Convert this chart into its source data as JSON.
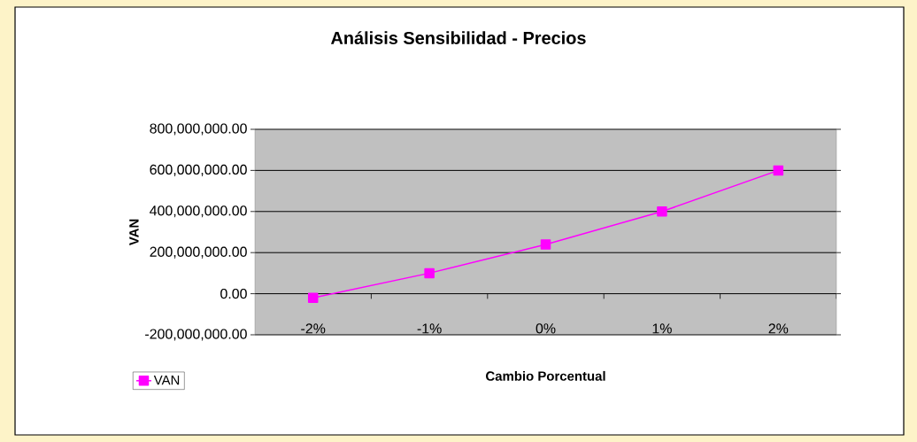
{
  "chart_data": {
    "type": "line",
    "title": "Análisis Sensibilidad - Precios",
    "xlabel": "Cambio Porcentual",
    "ylabel": "VAN",
    "categories": [
      "-2%",
      "-1%",
      "0%",
      "1%",
      "2%"
    ],
    "series": [
      {
        "name": "VAN",
        "color": "#ff00ff",
        "values": [
          -20000000,
          100000000,
          240000000,
          400000000,
          600000000
        ]
      }
    ],
    "ylim": [
      -200000000,
      800000000
    ],
    "yticks": [
      {
        "value": -200000000,
        "label": "-200,000,000.00"
      },
      {
        "value": 0,
        "label": "0.00"
      },
      {
        "value": 200000000,
        "label": "200,000,000.00"
      },
      {
        "value": 400000000,
        "label": "400,000,000.00"
      },
      {
        "value": 600000000,
        "label": "600,000,000.00"
      },
      {
        "value": 800000000,
        "label": "800,000,000.00"
      }
    ],
    "grid": "y",
    "legend": "bottom left",
    "marker": "square",
    "line_style": "solid"
  }
}
